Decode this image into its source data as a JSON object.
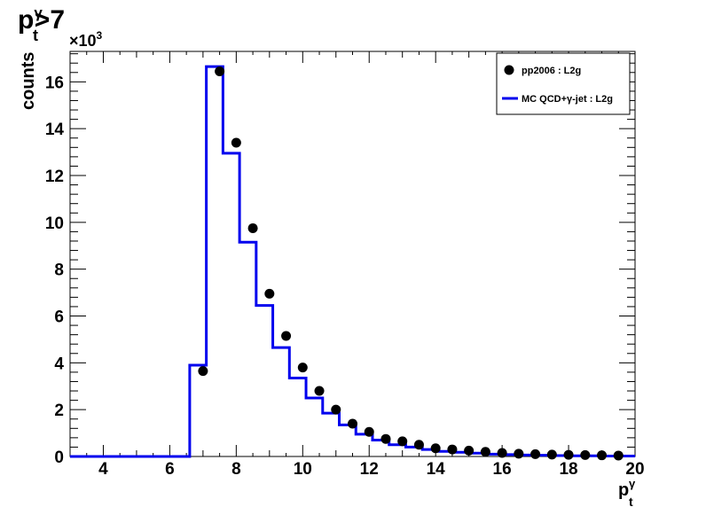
{
  "chart_data": {
    "type": "histogram",
    "title": {
      "base": "p",
      "sub": "t",
      "sup": "γ",
      "suffix": ">7"
    },
    "xlabel": {
      "base": "p",
      "sub": "t",
      "sup": "γ"
    },
    "ylabel": "counts",
    "y_multiplier": {
      "base": "×10",
      "exp": "3"
    },
    "xlim": [
      3,
      20
    ],
    "ylim": [
      0,
      17.3
    ],
    "x_ticks": [
      4,
      6,
      8,
      10,
      12,
      14,
      16,
      18,
      20
    ],
    "y_ticks": [
      0,
      2,
      4,
      6,
      8,
      10,
      12,
      14,
      16
    ],
    "grid": false,
    "legend_position": "top-right",
    "series": [
      {
        "name": "pp2006 : L2g",
        "kind": "markers",
        "color": "#000000",
        "x": [
          7.0,
          7.5,
          8.0,
          8.5,
          9.0,
          9.5,
          10.0,
          10.5,
          11.0,
          11.5,
          12.0,
          12.5,
          13.0,
          13.5,
          14.0,
          14.5,
          15.0,
          15.5,
          16.0,
          16.5,
          17.0,
          17.5,
          18.0,
          18.5,
          19.0,
          19.5
        ],
        "y": [
          3.65,
          16.45,
          13.4,
          9.75,
          6.95,
          5.15,
          3.8,
          2.8,
          2.0,
          1.4,
          1.05,
          0.75,
          0.65,
          0.5,
          0.35,
          0.3,
          0.25,
          0.2,
          0.15,
          0.12,
          0.1,
          0.08,
          0.07,
          0.06,
          0.05,
          0.04
        ]
      },
      {
        "name": "MC QCD+γ-jet : L2g",
        "kind": "step",
        "color": "#0000ee",
        "edges": [
          3.0,
          6.6,
          7.1,
          7.6,
          8.1,
          8.6,
          9.1,
          9.6,
          10.1,
          10.6,
          11.1,
          11.6,
          12.1,
          12.6,
          13.1,
          13.6,
          14.1,
          14.6,
          15.1,
          15.6,
          16.1,
          16.6,
          17.1,
          17.6,
          18.1,
          18.6,
          19.1,
          19.6,
          20.0
        ],
        "values": [
          0,
          3.9,
          16.65,
          12.95,
          9.15,
          6.45,
          4.65,
          3.35,
          2.5,
          1.85,
          1.35,
          0.95,
          0.7,
          0.5,
          0.4,
          0.3,
          0.22,
          0.18,
          0.14,
          0.1,
          0.08,
          0.06,
          0.05,
          0.04,
          0.03,
          0.03,
          0.02,
          0.02
        ]
      }
    ]
  }
}
